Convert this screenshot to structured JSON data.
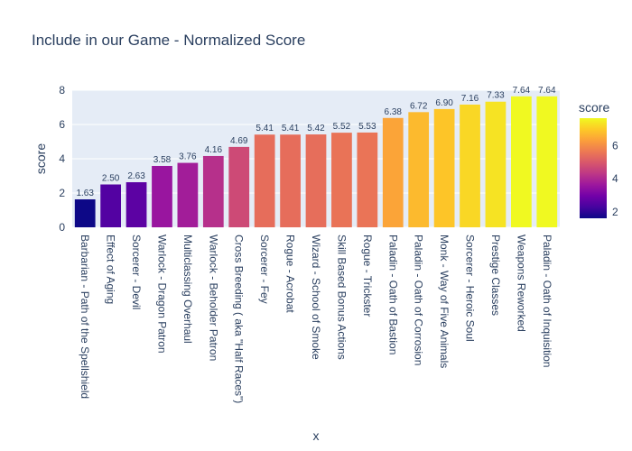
{
  "chart_data": {
    "type": "bar",
    "title": "Include in our Game - Normalized Score",
    "xlabel": "x",
    "ylabel": "score",
    "ylim": [
      0,
      8
    ],
    "yticks": [
      "0",
      "2",
      "4",
      "6",
      "8"
    ],
    "grid": true,
    "categories": [
      "Barbarian - Path of the Spellshield",
      "Effect of Aging",
      "Sorcerer - Devil",
      "Warlock - Dragon Patron",
      "Multiclassing Overhaul",
      "Warlock - Beholder Patron",
      "Cross Breeding ( aka \"Half Races\")",
      "Sorcerer - Fey",
      "Rogue - Acrobat",
      "Wizard - School of Smoke",
      "Skill Based Bonus Actions",
      "Rogue - Trickster",
      "Paladin - Oath of Bastion",
      "Paladin - Oath of Corrosion",
      "Monk - Way of Five Animals",
      "Sorcerer - Heroic Soul",
      "Prestige Classes",
      "Weapons Reworked",
      "Paladin - Oath of Inquisition"
    ],
    "values": [
      1.63,
      2.5,
      2.63,
      3.58,
      3.76,
      4.16,
      4.69,
      5.41,
      5.41,
      5.42,
      5.52,
      5.53,
      6.38,
      6.72,
      6.9,
      7.16,
      7.33,
      7.64,
      7.64
    ],
    "labels": [
      "1.63",
      "2.50",
      "2.63",
      "3.58",
      "3.76",
      "4.16",
      "4.69",
      "5.41",
      "5.41",
      "5.42",
      "5.52",
      "5.53",
      "6.38",
      "6.72",
      "6.90",
      "7.16",
      "7.33",
      "7.64",
      "7.64"
    ],
    "colorbar": {
      "title": "score",
      "ticks": [
        "2",
        "4",
        "6"
      ],
      "tick_values": [
        2,
        4,
        6
      ],
      "range": [
        1.63,
        7.64
      ],
      "colorscale": "plasma"
    }
  }
}
